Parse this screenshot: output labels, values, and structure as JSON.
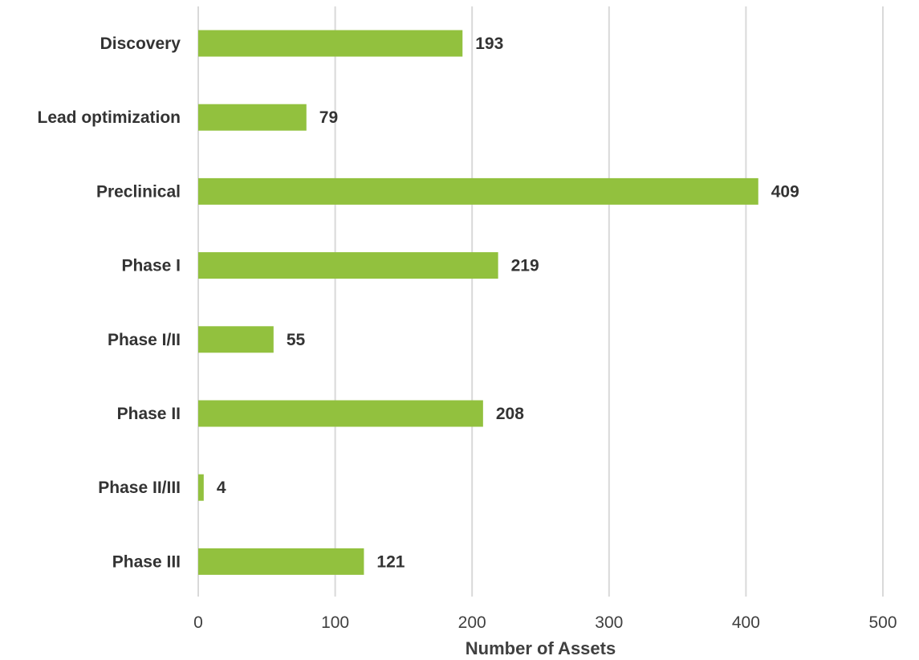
{
  "chart_data": {
    "type": "bar",
    "orientation": "horizontal",
    "title": "",
    "xlabel": "Number of Assets",
    "ylabel": "",
    "categories": [
      "Discovery",
      "Lead optimization",
      "Preclinical",
      "Phase I",
      "Phase I/II",
      "Phase II",
      "Phase II/III",
      "Phase III"
    ],
    "values": [
      193,
      79,
      409,
      219,
      55,
      208,
      4,
      121
    ],
    "xlim": [
      0,
      500
    ],
    "xticks": [
      0,
      100,
      200,
      300,
      400,
      500
    ],
    "grid": true,
    "legend": "none",
    "bar_color": "#92c13e"
  }
}
